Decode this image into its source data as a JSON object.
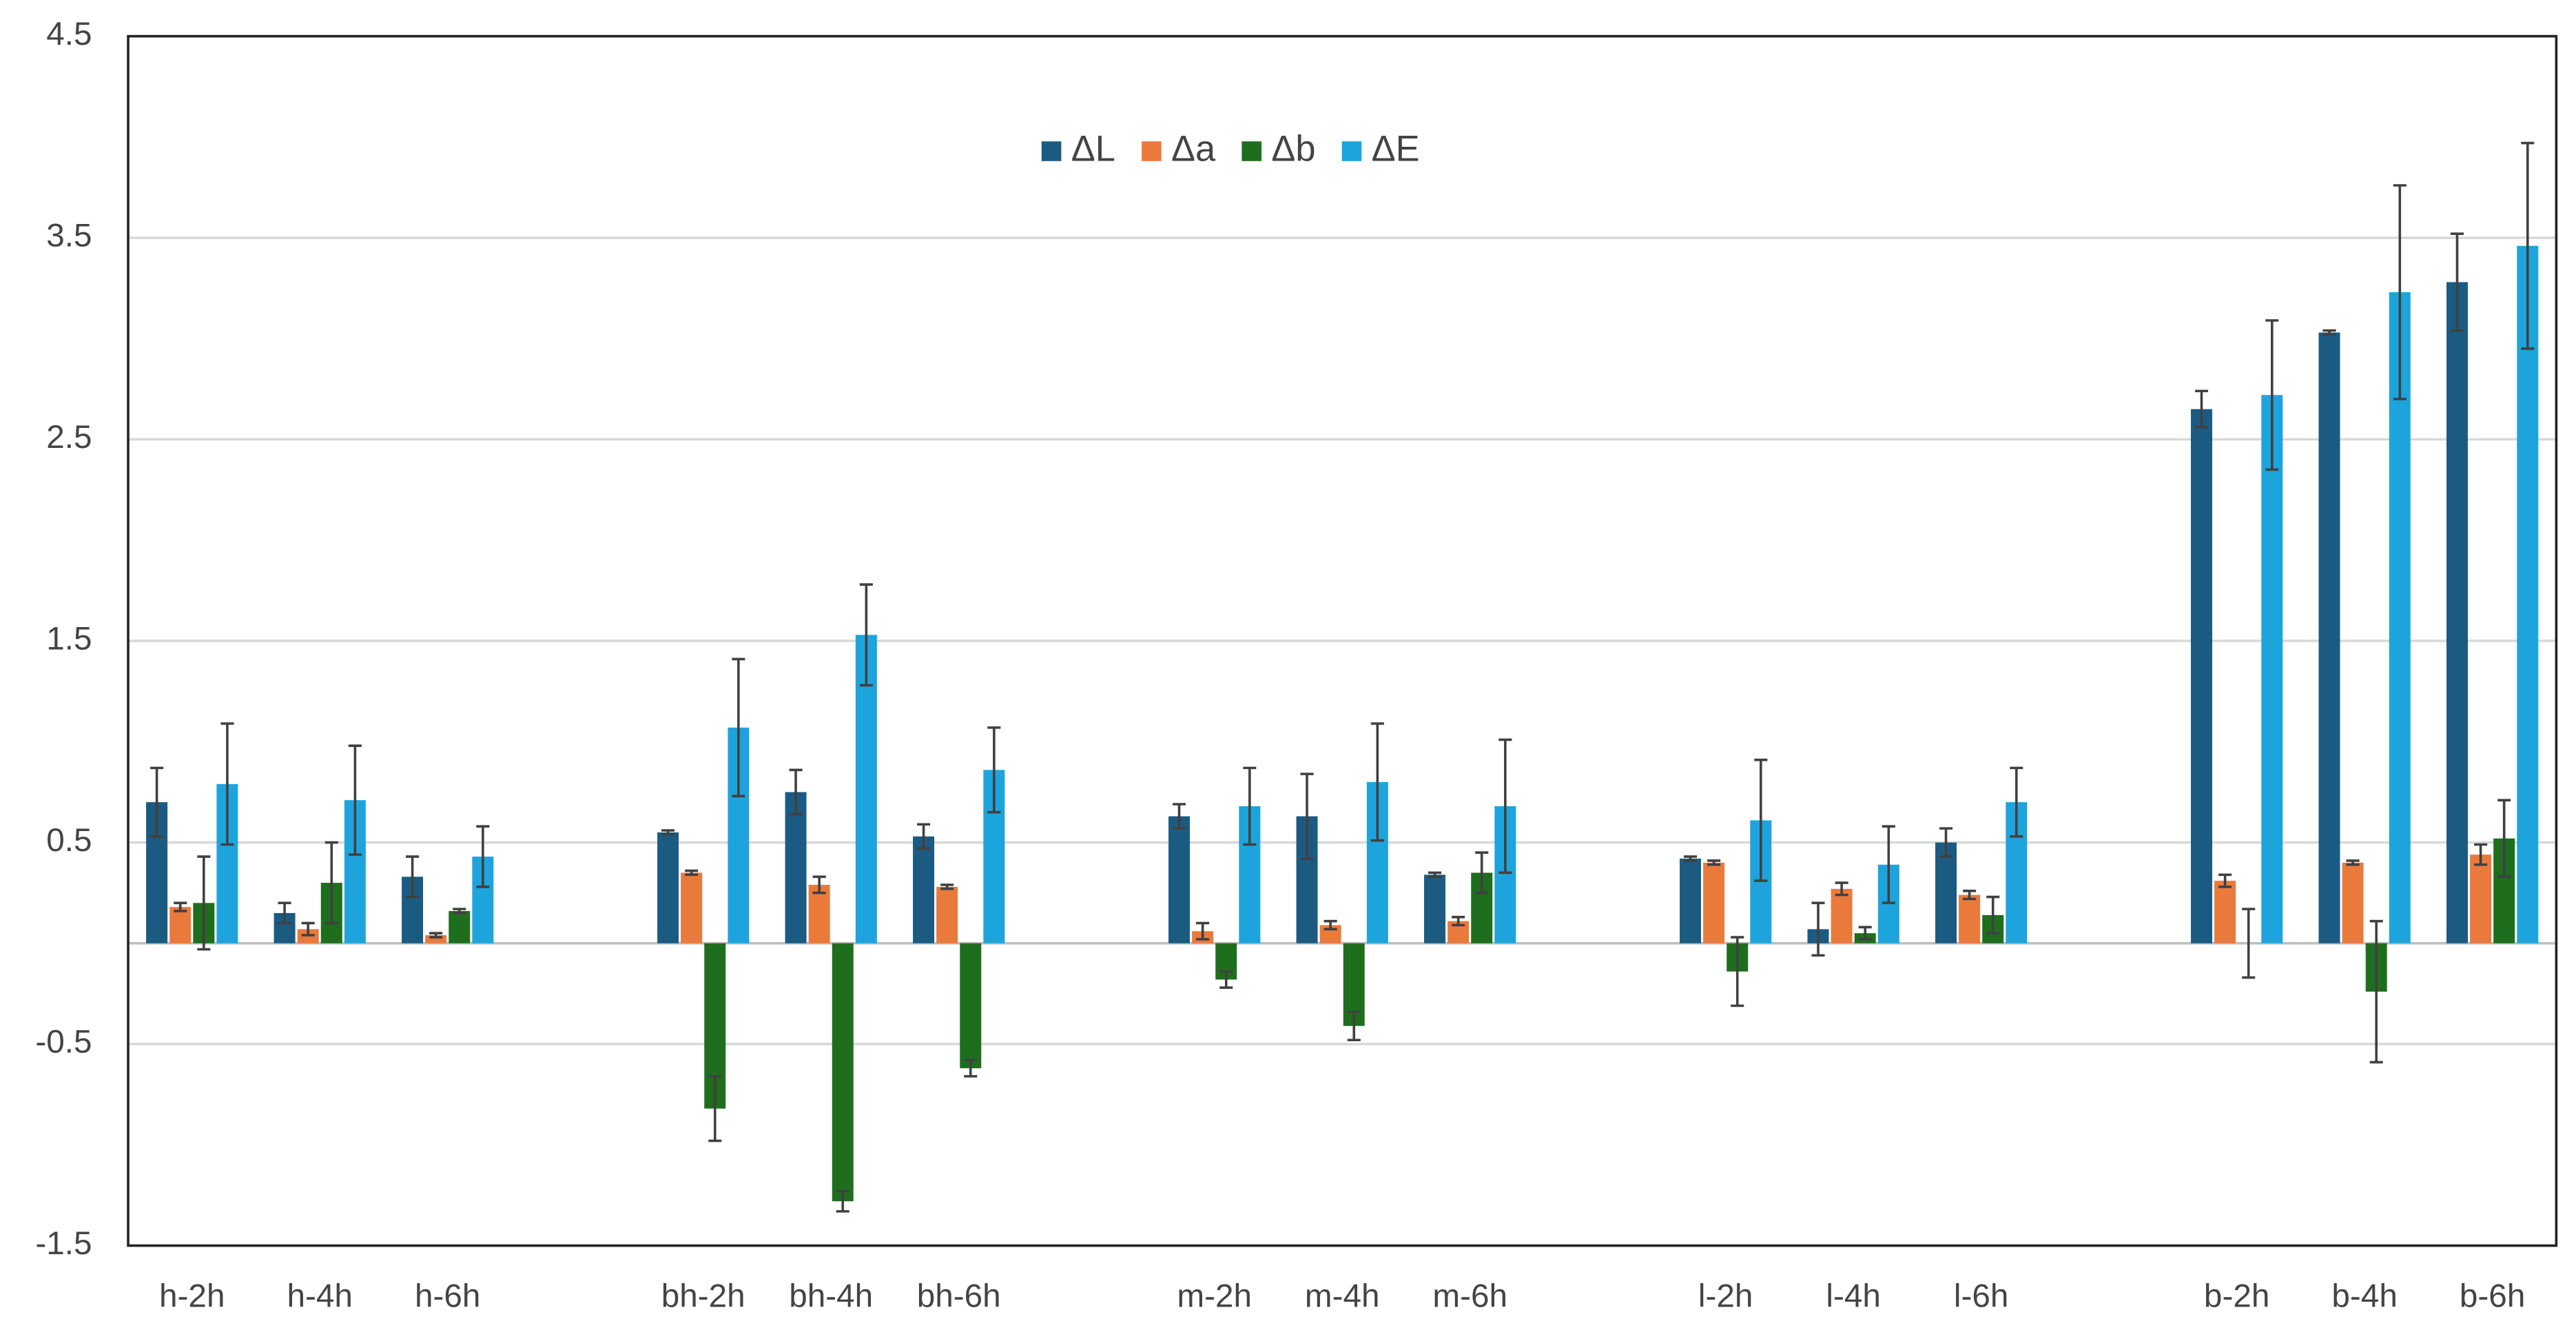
{
  "chart_data": {
    "type": "bar",
    "categories": [
      "h-2h",
      "h-4h",
      "h-6h",
      null,
      "bh-2h",
      "bh-4h",
      "bh-6h",
      null,
      "m-2h",
      "m-4h",
      "m-6h",
      null,
      "l-2h",
      "l-4h",
      "l-6h",
      null,
      "b-2h",
      "b-4h",
      "b-6h"
    ],
    "series": [
      {
        "name": "ΔL",
        "color": "#1b5b82",
        "values": [
          0.7,
          0.15,
          0.33,
          null,
          0.55,
          0.75,
          0.53,
          null,
          0.63,
          0.63,
          0.34,
          null,
          0.42,
          0.07,
          0.5,
          null,
          2.65,
          3.03,
          3.28
        ],
        "errors": [
          0.17,
          0.05,
          0.1,
          null,
          0.01,
          0.11,
          0.06,
          null,
          0.06,
          0.21,
          0.01,
          null,
          0.01,
          0.13,
          0.07,
          null,
          0.09,
          0.01,
          0.24
        ]
      },
      {
        "name": "Δa",
        "color": "#ea7a3c",
        "values": [
          0.18,
          0.07,
          0.04,
          null,
          0.35,
          0.29,
          0.28,
          null,
          0.06,
          0.09,
          0.11,
          null,
          0.4,
          0.27,
          0.24,
          null,
          0.31,
          0.4,
          0.44
        ],
        "errors": [
          0.02,
          0.03,
          0.01,
          null,
          0.01,
          0.04,
          0.01,
          null,
          0.04,
          0.02,
          0.02,
          null,
          0.01,
          0.03,
          0.02,
          null,
          0.03,
          0.01,
          0.05
        ]
      },
      {
        "name": "Δb",
        "color": "#1e6e1e",
        "values": [
          0.2,
          0.3,
          0.16,
          null,
          -0.82,
          -1.28,
          -0.62,
          null,
          -0.18,
          -0.41,
          0.35,
          null,
          -0.14,
          0.05,
          0.14,
          null,
          0.0,
          -0.24,
          0.52
        ],
        "errors": [
          0.23,
          0.2,
          0.01,
          null,
          0.16,
          0.05,
          0.04,
          null,
          0.04,
          0.07,
          0.1,
          null,
          0.17,
          0.03,
          0.09,
          null,
          0.17,
          0.35,
          0.19
        ]
      },
      {
        "name": "ΔE",
        "color": "#1ea4dc",
        "values": [
          0.79,
          0.71,
          0.43,
          null,
          1.07,
          1.53,
          0.86,
          null,
          0.68,
          0.8,
          0.68,
          null,
          0.61,
          0.39,
          0.7,
          null,
          2.72,
          3.23,
          3.46
        ],
        "errors": [
          0.3,
          0.27,
          0.15,
          null,
          0.34,
          0.25,
          0.21,
          null,
          0.19,
          0.29,
          0.33,
          null,
          0.3,
          0.19,
          0.17,
          null,
          0.37,
          0.53,
          0.51
        ]
      }
    ],
    "ylim": [
      -1.5,
      4.5
    ],
    "yticks": [
      -1.5,
      -0.5,
      0.5,
      1.5,
      2.5,
      3.5,
      4.5
    ],
    "grid": true,
    "legend": "top"
  }
}
